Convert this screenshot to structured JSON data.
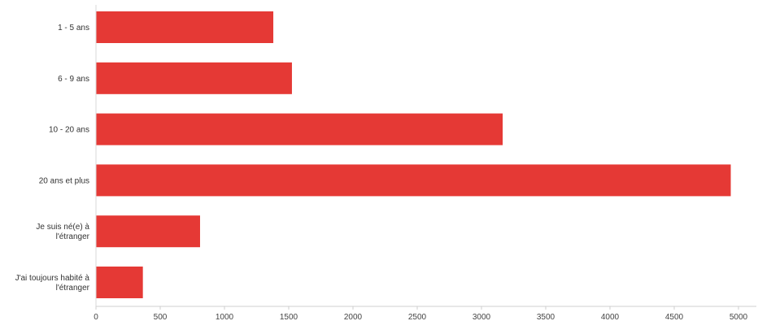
{
  "chart_data": {
    "type": "bar",
    "orientation": "horizontal",
    "categories": [
      "1 - 5 ans",
      "6 - 9 ans",
      "10 - 20 ans",
      "20 ans et plus",
      "Je suis né(e) à l'étranger",
      "J'ai toujours habité à l'étranger"
    ],
    "category_label_lines": [
      [
        "1 - 5 ans"
      ],
      [
        "6 - 9 ans"
      ],
      [
        "10 - 20 ans"
      ],
      [
        "20 ans et plus"
      ],
      [
        "Je suis né(e) à",
        "l'étranger"
      ],
      [
        "J'ai toujours habité à",
        "l'étranger"
      ]
    ],
    "values": [
      1380,
      1525,
      3165,
      4940,
      810,
      365
    ],
    "xlim": [
      0,
      5000
    ],
    "xticks": [
      0,
      500,
      1000,
      1500,
      2000,
      2500,
      3000,
      3500,
      4000,
      4500,
      5000
    ],
    "bar_color": "#e53935",
    "grid": false,
    "title": "",
    "xlabel": "",
    "ylabel": ""
  }
}
